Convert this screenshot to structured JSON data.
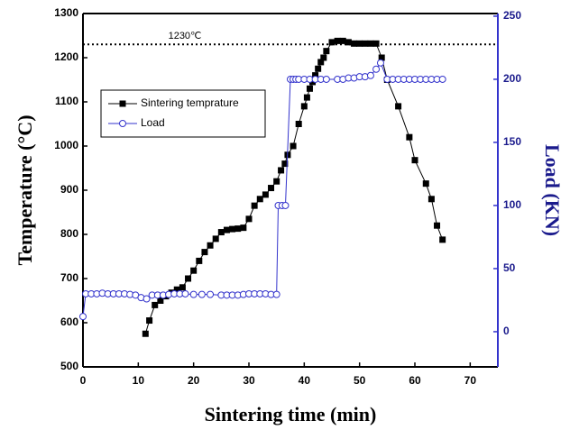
{
  "chart_data": {
    "type": "line",
    "xlabel": "Sintering time (min)",
    "ylabel": "Temperature (°C)",
    "y2label": "Load (KN)",
    "xlim": [
      0,
      75
    ],
    "xticks": [
      0,
      10,
      20,
      30,
      40,
      50,
      60,
      70
    ],
    "ylim": [
      500,
      1300
    ],
    "yticks": [
      500,
      600,
      700,
      800,
      900,
      1000,
      1100,
      1200,
      1300
    ],
    "y2lim": [
      -27.9,
      252.1
    ],
    "y2ticks": [
      0,
      50,
      100,
      150,
      200,
      250
    ],
    "reference_line": {
      "value": 1230,
      "label": "1230℃"
    },
    "legend": "upper left",
    "series": [
      {
        "name": "Sintering temprature",
        "color": "#000000",
        "marker": "square",
        "x": [
          11.3,
          12,
          13,
          14,
          15,
          16,
          17,
          18,
          19,
          20,
          21,
          22,
          23,
          24,
          25,
          26,
          27,
          28,
          29,
          30,
          31,
          32,
          33,
          34,
          35,
          35.8,
          36.5,
          37,
          38,
          39,
          40,
          40.5,
          41,
          41.5,
          42,
          42.5,
          43,
          43.5,
          44,
          45,
          46,
          47,
          48,
          49,
          50,
          51,
          52,
          53,
          54,
          55,
          57,
          59,
          60,
          62,
          63,
          64,
          65
        ],
        "values": [
          575,
          605,
          640,
          650,
          660,
          668,
          675,
          680,
          700,
          718,
          740,
          760,
          775,
          790,
          805,
          810,
          812,
          813,
          815,
          835,
          865,
          880,
          890,
          905,
          920,
          945,
          960,
          980,
          1000,
          1050,
          1090,
          1110,
          1130,
          1145,
          1160,
          1175,
          1190,
          1200,
          1215,
          1235,
          1238,
          1238,
          1235,
          1232,
          1232,
          1232,
          1232,
          1232,
          1200,
          1150,
          1090,
          1020,
          968,
          915,
          880,
          820,
          788
        ]
      },
      {
        "name": "Load",
        "color": "#3333cc",
        "marker": "circle",
        "axis": "y2",
        "x": [
          0,
          0.5,
          1.5,
          2.5,
          3.5,
          4.5,
          5.5,
          6.5,
          7.5,
          8.5,
          9.5,
          10.5,
          11.5,
          12.5,
          13.5,
          14.5,
          15.5,
          16.5,
          17.5,
          18.5,
          20,
          21.5,
          23,
          25,
          26,
          27,
          28,
          29,
          30,
          31,
          32,
          33,
          34,
          35,
          35.3,
          36,
          36.6,
          37.5,
          38,
          38.5,
          39,
          40,
          41,
          42,
          43,
          44,
          46,
          47,
          48,
          49,
          50,
          51,
          52,
          53,
          53.8,
          55,
          56,
          57,
          58,
          59,
          60,
          61,
          62,
          63,
          64,
          65
        ],
        "values": [
          12,
          30,
          30,
          30,
          30.5,
          30,
          30,
          30,
          30,
          29.5,
          29,
          27,
          26,
          29,
          29,
          29,
          29.5,
          30,
          30,
          30,
          29.5,
          29.5,
          29.5,
          29,
          29,
          29,
          29,
          29.5,
          30,
          30,
          30,
          30,
          29.5,
          29.5,
          100,
          100,
          100,
          200,
          200,
          200,
          200,
          200,
          200,
          200,
          200,
          200,
          200,
          200,
          201,
          201,
          202,
          202,
          203,
          208,
          213,
          200,
          200,
          200,
          200,
          200,
          200,
          200,
          200,
          200,
          200,
          200
        ]
      }
    ]
  }
}
